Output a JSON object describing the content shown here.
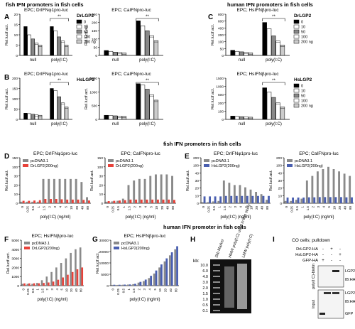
{
  "headers": {
    "fish_top": "fish IFN promoters  in fish cells",
    "human_top": "human IFN promoters in fish cells",
    "fish_mid": "fish IFN promoters in fish cells",
    "human_bottom": "human IFN promoter in fish cells"
  },
  "panel_letters": [
    "A",
    "B",
    "C",
    "D",
    "E",
    "F",
    "G",
    "H",
    "I"
  ],
  "common": {
    "ylabel": "Rel.lucif.act.",
    "xlabel_polyic": "poly(I:C) (ng/ml)",
    "doses": [
      "0",
      "10",
      "50",
      "100",
      "200 ng"
    ],
    "cat_labels": [
      "null",
      "poly(I:C)"
    ],
    "sig": "**",
    "x_doses": [
      "0",
      "0.25",
      "0.5",
      "1",
      "1.5",
      "2",
      "3",
      "4",
      "5",
      "10",
      "20",
      "40",
      "80"
    ]
  },
  "chart_data": [
    {
      "id": "A1",
      "type": "bar",
      "title": "EPC; DrIFNφ1pro-luc",
      "categories": [
        "null",
        "poly(I:C)"
      ],
      "legend": "DrLGP2",
      "ylim": [
        0,
        20
      ],
      "yticks": [
        "0",
        "5",
        "10",
        "15",
        "20"
      ],
      "series": [
        {
          "name": "0",
          "values": [
            14,
            14
          ]
        },
        {
          "name": "10",
          "values": [
            10,
            12
          ]
        },
        {
          "name": "50",
          "values": [
            8,
            9
          ]
        },
        {
          "name": "100",
          "values": [
            6,
            7
          ]
        },
        {
          "name": "200 ng",
          "values": [
            5,
            5
          ]
        }
      ]
    },
    {
      "id": "A2",
      "type": "bar",
      "title": "EPC; CaIFNpro-luc",
      "categories": [
        "null",
        "poly(I:C)"
      ],
      "ylim": [
        0,
        250
      ],
      "yticks": [
        "0",
        "50",
        "100",
        "150",
        "200",
        "250"
      ],
      "series": [
        {
          "name": "0",
          "values": [
            30,
            210
          ]
        },
        {
          "name": "10",
          "values": [
            25,
            180
          ]
        },
        {
          "name": "50",
          "values": [
            20,
            150
          ]
        },
        {
          "name": "100",
          "values": [
            18,
            120
          ]
        },
        {
          "name": "200 ng",
          "values": [
            15,
            90
          ]
        }
      ]
    },
    {
      "id": "B1",
      "type": "bar",
      "title": "EPC; DrIFNφ1pro-luc",
      "categories": [
        "null",
        "poly(I:C)"
      ],
      "legend": "HsLGP2",
      "ylim": [
        0,
        200
      ],
      "yticks": [
        "0",
        "50",
        "100",
        "150",
        "200"
      ],
      "series": [
        {
          "name": "0",
          "values": [
            30,
            150
          ]
        },
        {
          "name": "10",
          "values": [
            28,
            140
          ]
        },
        {
          "name": "50",
          "values": [
            25,
            110
          ]
        },
        {
          "name": "100",
          "values": [
            22,
            80
          ]
        },
        {
          "name": "200 ng",
          "values": [
            20,
            60
          ]
        }
      ]
    },
    {
      "id": "B2",
      "type": "bar",
      "title": "EPC; CaIFNpro-luc",
      "categories": [
        "null",
        "poly(I:C)"
      ],
      "ylim": [
        0,
        1500
      ],
      "yticks": [
        "0",
        "500",
        "1000",
        "1500"
      ],
      "series": [
        {
          "name": "0",
          "values": [
            150,
            1300
          ]
        },
        {
          "name": "10",
          "values": [
            140,
            1250
          ]
        },
        {
          "name": "50",
          "values": [
            130,
            1100
          ]
        },
        {
          "name": "100",
          "values": [
            120,
            900
          ]
        },
        {
          "name": "200 ng",
          "values": [
            110,
            700
          ]
        }
      ]
    },
    {
      "id": "C1",
      "type": "bar",
      "title": "EPC; HsIFNβpro-luc",
      "categories": [
        "null",
        "poly(I:C)"
      ],
      "legend": "DrLGP2",
      "ylim": [
        0,
        800
      ],
      "yticks": [
        "0",
        "50",
        "100",
        "200",
        "400",
        "600",
        "800"
      ],
      "series": [
        {
          "name": "0",
          "values": [
            100,
            640
          ]
        },
        {
          "name": "10",
          "values": [
            80,
            520
          ]
        },
        {
          "name": "50",
          "values": [
            70,
            380
          ]
        },
        {
          "name": "100",
          "values": [
            60,
            280
          ]
        },
        {
          "name": "200 ng",
          "values": [
            50,
            200
          ]
        }
      ]
    },
    {
      "id": "C2",
      "type": "bar",
      "title": "EPC; HsIFNβpro-luc",
      "categories": [
        "null",
        "poly(I:C)"
      ],
      "legend": "HsLGP2",
      "ylim": [
        0,
        1500
      ],
      "yticks": [
        "0",
        "100",
        "200",
        "500",
        "1000",
        "1500"
      ],
      "series": [
        {
          "name": "0",
          "values": [
            120,
            1150
          ]
        },
        {
          "name": "10",
          "values": [
            110,
            1000
          ]
        },
        {
          "name": "50",
          "values": [
            100,
            800
          ]
        },
        {
          "name": "100",
          "values": [
            90,
            600
          ]
        },
        {
          "name": "200 ng",
          "values": [
            80,
            450
          ]
        }
      ]
    },
    {
      "id": "D1",
      "type": "bar",
      "title": "EPC; DrIFNφ1pro-luc",
      "ylim": [
        0,
        150
      ],
      "yticks": [
        "0",
        "10",
        "20",
        "30",
        "100",
        "150"
      ],
      "series": [
        {
          "name": "pcDNA3.1",
          "values": [
            5,
            5,
            5,
            5,
            80,
            80,
            80,
            80,
            80,
            80,
            80,
            70,
            20
          ]
        },
        {
          "name": "DrLGP2(200ng)",
          "values": [
            8,
            8,
            9,
            10,
            14,
            14,
            14,
            13,
            12,
            12,
            12,
            11,
            9
          ]
        }
      ]
    },
    {
      "id": "D2",
      "type": "bar",
      "title": "EPC; CaIFNpro-luc",
      "ylim": [
        0,
        150
      ],
      "yticks": [
        "0",
        "10",
        "20",
        "30",
        "100",
        "150"
      ],
      "series": [
        {
          "name": "pcDNA3.1",
          "values": [
            5,
            6,
            8,
            15,
            60,
            75,
            80,
            80,
            90,
            95,
            95,
            95,
            90
          ]
        },
        {
          "name": "DrLGP2(200ng)",
          "values": [
            7,
            8,
            9,
            10,
            12,
            12,
            12,
            12,
            12,
            12,
            12,
            12,
            11
          ]
        }
      ]
    },
    {
      "id": "E1",
      "type": "bar",
      "title": "EPC; DrIFNφ1pro-luc",
      "ylim": [
        0,
        200
      ],
      "yticks": [
        "0",
        "10",
        "20",
        "30",
        "40",
        "100",
        "200"
      ],
      "series": [
        {
          "name": "pcDNA3.1",
          "values": [
            5,
            5,
            8,
            10,
            100,
            90,
            80,
            80,
            70,
            60,
            50,
            40,
            15
          ]
        },
        {
          "name": "HsLGP2(200ng)",
          "values": [
            30,
            30,
            30,
            30,
            32,
            32,
            32,
            32,
            32,
            32,
            32,
            32,
            32
          ]
        }
      ]
    },
    {
      "id": "E2",
      "type": "bar",
      "title": "EPC; CaIFNpro-luc",
      "ylim": [
        0,
        200
      ],
      "yticks": [
        "0",
        "10",
        "20",
        "30",
        "40",
        "100",
        "200"
      ],
      "series": [
        {
          "name": "pcDNA3.1",
          "values": [
            10,
            10,
            15,
            20,
            100,
            120,
            140,
            150,
            160,
            150,
            140,
            130,
            120
          ]
        },
        {
          "name": "HsLGP2(200ng)",
          "values": [
            25,
            25,
            25,
            25,
            26,
            26,
            27,
            27,
            27,
            27,
            27,
            26,
            26
          ]
        }
      ]
    },
    {
      "id": "F",
      "type": "bar",
      "title": "EPC; HsIFNβpro-luc",
      "ylim": [
        0,
        5000
      ],
      "yticks": [
        "0",
        "1000",
        "2000",
        "3000",
        "4000",
        "5000"
      ],
      "series": [
        {
          "name": "pcDNA3.1",
          "values": [
            200,
            200,
            200,
            300,
            600,
            1000,
            1500,
            2000,
            2500,
            3000,
            3600,
            4000,
            4200
          ]
        },
        {
          "name": "DrLGP2(200ng)",
          "values": [
            250,
            250,
            260,
            260,
            300,
            350,
            450,
            650,
            900,
            1200,
            1500,
            1800,
            2000
          ]
        }
      ]
    },
    {
      "id": "G",
      "type": "bar",
      "title": "EPC; HsIFNβpro-luc",
      "ylim": [
        0,
        30000
      ],
      "yticks": [
        "0",
        "5000",
        "10000",
        "20000",
        "30000"
      ],
      "series": [
        {
          "name": "pcDNA3.1",
          "values": [
            500,
            500,
            600,
            700,
            1000,
            2000,
            3000,
            5000,
            8000,
            12000,
            16000,
            20000,
            24000
          ]
        },
        {
          "name": "HsLGP2(200ng)",
          "values": [
            600,
            600,
            700,
            800,
            1200,
            2500,
            4000,
            6500,
            10000,
            14000,
            18000,
            22000,
            26000
          ]
        }
      ]
    }
  ],
  "panel_H": {
    "ylabel": "kb:",
    "ticks": [
      "10.0",
      "6.0",
      "4.0",
      "3.0",
      "2.0",
      "1.5",
      "1.0",
      "0.5",
      "0.1"
    ],
    "lanes": [
      "2kb Marker",
      "HMW poly(I:C) used in this study",
      "LMW poly(I:C)"
    ]
  },
  "panel_I": {
    "title": "CO cells; pulldown",
    "rows": [
      "DrLGP2-HA",
      "HsLGP2-HA",
      "GFP-HA"
    ],
    "row_colors": [
      "#e8423a",
      "#4a5fb0",
      "#000000"
    ],
    "marks": [
      [
        "-",
        "+",
        "-"
      ],
      [
        "-",
        "-",
        "+"
      ],
      [
        "+",
        "-",
        "-"
      ]
    ],
    "left_labels": [
      "poly(I:C)-biotin",
      "Input"
    ],
    "right_labels": [
      "LGP2",
      "IB:HA",
      "LGP2",
      "IB:HA",
      "GFP"
    ]
  },
  "colors": {
    "red": "#e8423a",
    "blue": "#4a5fb0",
    "gray": "#8a8a8a",
    "black": "#000000"
  }
}
